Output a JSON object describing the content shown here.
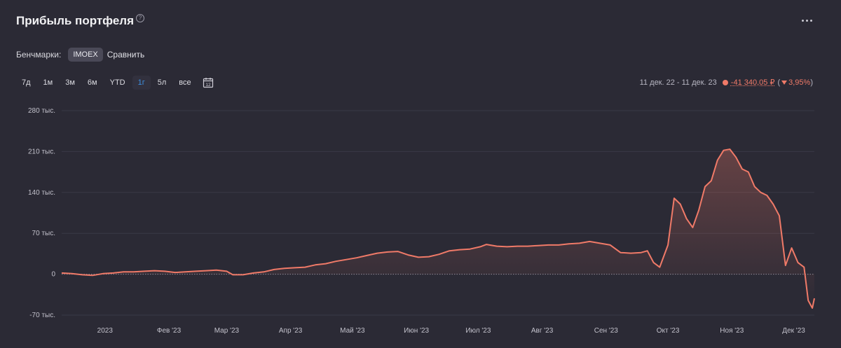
{
  "header": {
    "title": "Прибыль портфеля",
    "help_glyph": "?"
  },
  "benchmarks": {
    "label": "Бенчмарки:",
    "chip": "IMOEX",
    "compare": "Сравнить"
  },
  "periods": [
    {
      "label": "7д",
      "active": false
    },
    {
      "label": "1м",
      "active": false
    },
    {
      "label": "3м",
      "active": false
    },
    {
      "label": "6м",
      "active": false
    },
    {
      "label": "YTD",
      "active": false
    },
    {
      "label": "1г",
      "active": true
    },
    {
      "label": "5л",
      "active": false
    },
    {
      "label": "все",
      "active": false
    }
  ],
  "calendar_icon_text": "12",
  "summary": {
    "range": "11 дек. 22 - 11 дек. 23",
    "value": "-41 340,05 ₽",
    "percent": "3,95%"
  },
  "colors": {
    "background": "#2b2a35",
    "line": "#f07a68",
    "active_period": "#3d8fe0"
  },
  "chart_data": {
    "type": "area",
    "ylim": [
      -70000,
      280000
    ],
    "yticks": [
      {
        "value": 280000,
        "label": "280 тыс."
      },
      {
        "value": 210000,
        "label": "210 тыс."
      },
      {
        "value": 140000,
        "label": "140 тыс."
      },
      {
        "value": 70000,
        "label": "70 тыс."
      },
      {
        "value": 0,
        "label": "0"
      },
      {
        "value": -70000,
        "label": "-70 тыс."
      }
    ],
    "xlim": [
      "2022-12-11",
      "2023-12-11"
    ],
    "xticks": [
      {
        "date": "2023-01-01",
        "label": "2023"
      },
      {
        "date": "2023-02-01",
        "label": "Фев '23"
      },
      {
        "date": "2023-03-01",
        "label": "Мар '23"
      },
      {
        "date": "2023-04-01",
        "label": "Апр '23"
      },
      {
        "date": "2023-05-01",
        "label": "Май '23"
      },
      {
        "date": "2023-06-01",
        "label": "Июн '23"
      },
      {
        "date": "2023-07-01",
        "label": "Июл '23"
      },
      {
        "date": "2023-08-01",
        "label": "Авг '23"
      },
      {
        "date": "2023-09-01",
        "label": "Сен '23"
      },
      {
        "date": "2023-10-01",
        "label": "Окт '23"
      },
      {
        "date": "2023-11-01",
        "label": "Ноя '23"
      },
      {
        "date": "2023-12-01",
        "label": "Дек '23"
      }
    ],
    "zero_line": "dotted",
    "series": [
      {
        "color": "#f07a68",
        "points": [
          [
            "2022-12-11",
            2000
          ],
          [
            "2022-12-16",
            1000
          ],
          [
            "2022-12-21",
            -1000
          ],
          [
            "2022-12-26",
            -2000
          ],
          [
            "2022-12-31",
            1000
          ],
          [
            "2023-01-05",
            2000
          ],
          [
            "2023-01-10",
            4000
          ],
          [
            "2023-01-15",
            4000
          ],
          [
            "2023-01-20",
            5000
          ],
          [
            "2023-01-25",
            6000
          ],
          [
            "2023-01-30",
            5000
          ],
          [
            "2023-02-04",
            3000
          ],
          [
            "2023-02-09",
            4000
          ],
          [
            "2023-02-14",
            5000
          ],
          [
            "2023-02-19",
            6000
          ],
          [
            "2023-02-24",
            7000
          ],
          [
            "2023-03-01",
            5000
          ],
          [
            "2023-03-04",
            -1000
          ],
          [
            "2023-03-09",
            -1000
          ],
          [
            "2023-03-14",
            2000
          ],
          [
            "2023-03-19",
            4000
          ],
          [
            "2023-03-24",
            8000
          ],
          [
            "2023-03-29",
            10000
          ],
          [
            "2023-04-03",
            11000
          ],
          [
            "2023-04-08",
            12000
          ],
          [
            "2023-04-13",
            16000
          ],
          [
            "2023-04-18",
            18000
          ],
          [
            "2023-04-23",
            22000
          ],
          [
            "2023-04-28",
            25000
          ],
          [
            "2023-05-03",
            28000
          ],
          [
            "2023-05-08",
            32000
          ],
          [
            "2023-05-13",
            36000
          ],
          [
            "2023-05-18",
            38000
          ],
          [
            "2023-05-23",
            39000
          ],
          [
            "2023-05-28",
            33000
          ],
          [
            "2023-06-02",
            29000
          ],
          [
            "2023-06-07",
            30000
          ],
          [
            "2023-06-12",
            34000
          ],
          [
            "2023-06-17",
            40000
          ],
          [
            "2023-06-22",
            42000
          ],
          [
            "2023-06-27",
            43000
          ],
          [
            "2023-07-02",
            47000
          ],
          [
            "2023-07-05",
            51000
          ],
          [
            "2023-07-10",
            48000
          ],
          [
            "2023-07-15",
            47000
          ],
          [
            "2023-07-20",
            48000
          ],
          [
            "2023-07-25",
            48000
          ],
          [
            "2023-07-30",
            49000
          ],
          [
            "2023-08-04",
            50000
          ],
          [
            "2023-08-09",
            50000
          ],
          [
            "2023-08-14",
            52000
          ],
          [
            "2023-08-19",
            53000
          ],
          [
            "2023-08-24",
            56000
          ],
          [
            "2023-08-29",
            53000
          ],
          [
            "2023-09-03",
            50000
          ],
          [
            "2023-09-08",
            37000
          ],
          [
            "2023-09-13",
            36000
          ],
          [
            "2023-09-18",
            37000
          ],
          [
            "2023-09-21",
            40000
          ],
          [
            "2023-09-24",
            20000
          ],
          [
            "2023-09-27",
            12000
          ],
          [
            "2023-10-01",
            50000
          ],
          [
            "2023-10-04",
            130000
          ],
          [
            "2023-10-07",
            120000
          ],
          [
            "2023-10-10",
            95000
          ],
          [
            "2023-10-13",
            80000
          ],
          [
            "2023-10-16",
            110000
          ],
          [
            "2023-10-19",
            150000
          ],
          [
            "2023-10-22",
            160000
          ],
          [
            "2023-10-25",
            195000
          ],
          [
            "2023-10-28",
            212000
          ],
          [
            "2023-10-31",
            214000
          ],
          [
            "2023-11-03",
            200000
          ],
          [
            "2023-11-06",
            180000
          ],
          [
            "2023-11-09",
            175000
          ],
          [
            "2023-11-12",
            150000
          ],
          [
            "2023-11-15",
            140000
          ],
          [
            "2023-11-18",
            135000
          ],
          [
            "2023-11-21",
            120000
          ],
          [
            "2023-11-24",
            100000
          ],
          [
            "2023-11-27",
            15000
          ],
          [
            "2023-11-30",
            45000
          ],
          [
            "2023-12-03",
            20000
          ],
          [
            "2023-12-06",
            12000
          ],
          [
            "2023-12-08",
            -45000
          ],
          [
            "2023-12-10",
            -58000
          ],
          [
            "2023-12-11",
            -41340
          ]
        ]
      }
    ]
  }
}
